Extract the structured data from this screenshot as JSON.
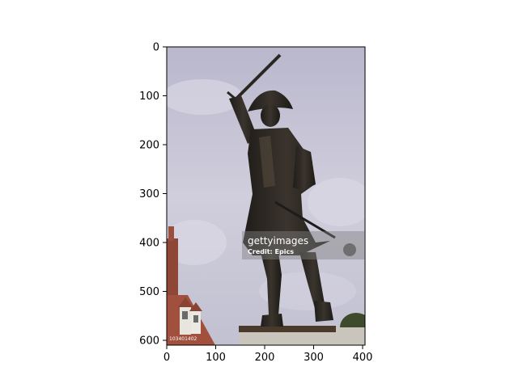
{
  "figure": {
    "x_ticks": [
      "0",
      "100",
      "200",
      "300",
      "400"
    ],
    "y_ticks": [
      "0",
      "100",
      "200",
      "300",
      "400",
      "500",
      "600"
    ]
  },
  "photo": {
    "subject": "bronze statue of an 18th-century officer raising a sword",
    "watermark": {
      "logo": "gettyimages",
      "credit": "Credit: Epics",
      "image_number": "103401402"
    }
  },
  "colors": {
    "sky": "#c8c6d6",
    "bronze": "#2a2622",
    "brick": "#a0503c",
    "axis": "#000000"
  }
}
